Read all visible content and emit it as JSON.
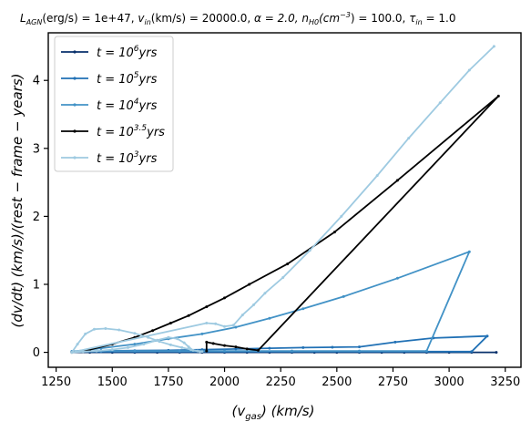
{
  "chart_data": {
    "type": "line",
    "title": "L_{AGN}(erg/s)=1e+47, v_{in}(km/s)=20000.0, α=2.0, n_{H0}(cm^{-3})=100.0, τ_{in}=1.0",
    "xlabel": "(v_{gas})   (km/s)",
    "ylabel": "(dv/dt)   (km/s)/(rest−frame−years)",
    "xlim": [
      1215,
      3320
    ],
    "ylim": [
      -0.22,
      4.7
    ],
    "xticks": [
      "1250",
      "1500",
      "1750",
      "2000",
      "2250",
      "2500",
      "2750",
      "3000",
      "3250"
    ],
    "yticks": [
      "0",
      "1",
      "2",
      "3",
      "4"
    ],
    "legend_position": "upper-left",
    "grid": false,
    "series": [
      {
        "name": "t = 10^6 yrs",
        "color": "#08306b",
        "x": [
          1320,
          1400,
          1500,
          1600,
          1700,
          1800,
          1900,
          2000,
          2100,
          2200,
          2300,
          2400,
          2500,
          2600,
          2700,
          2800,
          2900,
          3000,
          3100,
          3210
        ],
        "y": [
          0,
          0,
          0,
          0,
          0,
          0,
          0,
          0,
          0,
          0,
          0,
          0,
          0,
          0,
          0,
          0,
          0,
          0,
          0,
          0
        ]
      },
      {
        "name": "t = 10^5 yrs",
        "color": "#2171b5",
        "x": [
          1320,
          1450,
          1600,
          1750,
          1900,
          2050,
          2200,
          2350,
          2480,
          2600,
          2760,
          2930,
          3170,
          3100,
          2900,
          2600,
          2300,
          2000,
          1800,
          1600,
          1450,
          1320
        ],
        "y": [
          0.01,
          0.02,
          0.025,
          0.03,
          0.04,
          0.05,
          0.06,
          0.07,
          0.075,
          0.08,
          0.15,
          0.21,
          0.24,
          0.01,
          0.01,
          0.01,
          0.01,
          0.01,
          0.01,
          0.01,
          0.01,
          0.01
        ]
      },
      {
        "name": "t = 10^4 yrs",
        "color": "#4292c6",
        "x": [
          1320,
          1450,
          1600,
          1750,
          1900,
          2050,
          2200,
          2350,
          2530,
          2770,
          3090,
          2900,
          2600,
          2300,
          2000,
          1800,
          1600,
          1450,
          1320
        ],
        "y": [
          0.01,
          0.06,
          0.12,
          0.2,
          0.27,
          0.37,
          0.5,
          0.64,
          0.82,
          1.09,
          1.48,
          0.02,
          0.02,
          0.02,
          0.02,
          0.02,
          0.02,
          0.02,
          0.01
        ]
      },
      {
        "name": "t = 10^{3.5} yrs",
        "color": "#000000",
        "x": [
          1320,
          1400,
          1500,
          1600,
          1680,
          1760,
          1840,
          1920,
          2000,
          2110,
          2280,
          2490,
          2770,
          3220,
          2150,
          2100,
          2050,
          2000,
          1950,
          1920,
          1920
        ],
        "y": [
          0,
          0.04,
          0.12,
          0.22,
          0.32,
          0.43,
          0.54,
          0.67,
          0.8,
          1.0,
          1.3,
          1.77,
          2.53,
          3.77,
          0.03,
          0.05,
          0.08,
          0.1,
          0.13,
          0.15,
          0.02
        ]
      },
      {
        "name": "t = 10^3 yrs",
        "color": "#9ecae1",
        "x": [
          1320,
          1345,
          1380,
          1420,
          1470,
          1530,
          1600,
          1660,
          1710,
          1760,
          1810,
          1850,
          1880,
          1900,
          1890,
          1860,
          1840,
          1820,
          1790,
          1750,
          1700,
          1640,
          1570,
          1500,
          1430,
          1370,
          1320,
          1920,
          1960,
          2000,
          2040,
          2080,
          2130,
          2180,
          2260,
          2380,
          2520,
          2680,
          2820,
          2960,
          3090,
          3200
        ],
        "y": [
          0,
          0.12,
          0.27,
          0.34,
          0.35,
          0.33,
          0.28,
          0.22,
          0.16,
          0.11,
          0.07,
          0.04,
          0.02,
          0.01,
          0.01,
          0.03,
          0.08,
          0.14,
          0.2,
          0.22,
          0.18,
          0.12,
          0.07,
          0.04,
          0.02,
          0.01,
          0,
          0.43,
          0.42,
          0.38,
          0.4,
          0.55,
          0.7,
          0.87,
          1.1,
          1.5,
          2.0,
          2.6,
          3.15,
          3.67,
          4.15,
          4.5
        ]
      }
    ]
  },
  "legend": [
    {
      "base": "t = 10",
      "exp": "6",
      "unit": "yrs",
      "color": "#08306b"
    },
    {
      "base": "t = 10",
      "exp": "5",
      "unit": "yrs",
      "color": "#2171b5"
    },
    {
      "base": "t = 10",
      "exp": "4",
      "unit": "yrs",
      "color": "#4292c6"
    },
    {
      "base": "t = 10",
      "exp": "3.5",
      "unit": "yrs",
      "color": "#000000"
    },
    {
      "base": "t = 10",
      "exp": "3",
      "unit": "yrs",
      "color": "#9ecae1"
    }
  ],
  "title_parts": {
    "l_main": "L",
    "l_sub": "AGN",
    "l_rest": "(erg/s) = 1e+47, ",
    "v_main": "v",
    "v_sub": "in",
    "v_rest": "(km/s) = 20000.0, ",
    "alpha": "α = 2.0, ",
    "n_main": "n",
    "n_sub": "H0",
    "n_mid": "(cm",
    "n_sup": "−3",
    "n_rest": ") = 100.0, ",
    "tau_main": "τ",
    "tau_sub": "in",
    "tau_rest": " = 1.0"
  },
  "xlabel_parts": {
    "left": "(v",
    "sub": "gas",
    "right": ")   (km/s)"
  },
  "ylabel_text": "(dv/dt)   (km/s)/(rest − frame − years)"
}
